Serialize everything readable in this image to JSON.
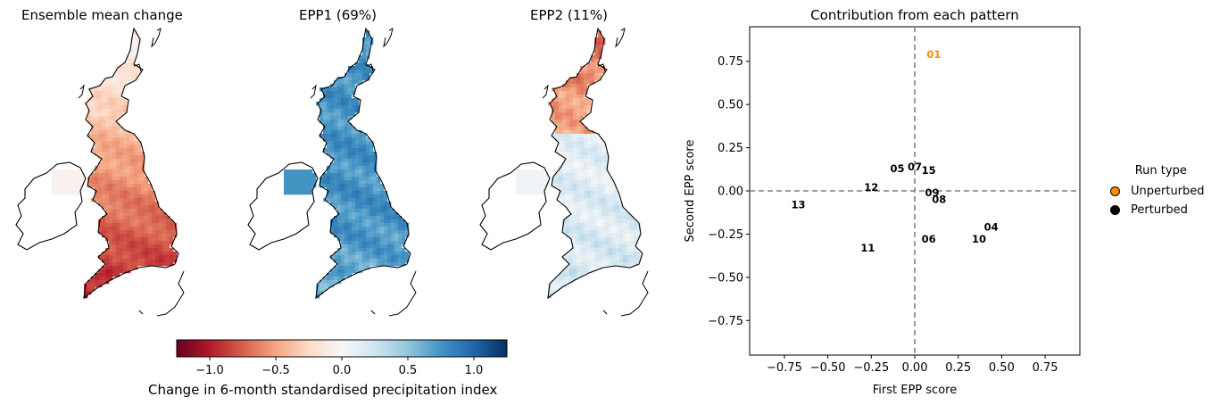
{
  "maps": [
    {
      "title": "Ensemble mean change"
    },
    {
      "title": "EPP1 (69%)"
    },
    {
      "title": "EPP2 (11%)"
    }
  ],
  "colorbar": {
    "label": "Change in 6-month standardised precipitation index",
    "ticks": [
      "−1.0",
      "−0.5",
      "0.0",
      "0.5",
      "1.0"
    ],
    "tick_values": [
      -1.0,
      -0.5,
      0.0,
      0.5,
      1.0
    ],
    "range": [
      -1.25,
      1.25
    ],
    "colormap": "RdBu"
  },
  "chart_data": {
    "type": "scatter",
    "title": "Contribution from each pattern",
    "xlabel": "First EPP score",
    "ylabel": "Second EPP score",
    "xlim": [
      -0.95,
      0.95
    ],
    "ylim": [
      -0.95,
      0.95
    ],
    "xticks": [
      "−0.75",
      "−0.50",
      "−0.25",
      "0.00",
      "0.25",
      "0.50",
      "0.75"
    ],
    "xtick_values": [
      -0.75,
      -0.5,
      -0.25,
      0.0,
      0.25,
      0.5,
      0.75
    ],
    "yticks": [
      "−0.75",
      "−0.50",
      "−0.25",
      "0.00",
      "0.25",
      "0.50",
      "0.75"
    ],
    "ytick_values": [
      -0.75,
      -0.5,
      -0.25,
      0.0,
      0.25,
      0.5,
      0.75
    ],
    "reference_lines": {
      "x": 0,
      "y": 0,
      "style": "dashed",
      "color": "#808080"
    },
    "points": [
      {
        "label": "01",
        "x": 0.11,
        "y": 0.79,
        "type": "Unperturbed"
      },
      {
        "label": "04",
        "x": 0.44,
        "y": -0.21,
        "type": "Perturbed"
      },
      {
        "label": "05",
        "x": -0.1,
        "y": 0.13,
        "type": "Perturbed"
      },
      {
        "label": "06",
        "x": 0.08,
        "y": -0.28,
        "type": "Perturbed"
      },
      {
        "label": "07",
        "x": 0.0,
        "y": 0.14,
        "type": "Perturbed"
      },
      {
        "label": "08",
        "x": 0.14,
        "y": -0.05,
        "type": "Perturbed"
      },
      {
        "label": "09",
        "x": 0.1,
        "y": -0.01,
        "type": "Perturbed"
      },
      {
        "label": "10",
        "x": 0.37,
        "y": -0.28,
        "type": "Perturbed"
      },
      {
        "label": "11",
        "x": -0.27,
        "y": -0.33,
        "type": "Perturbed"
      },
      {
        "label": "12",
        "x": -0.25,
        "y": 0.02,
        "type": "Perturbed"
      },
      {
        "label": "13",
        "x": -0.67,
        "y": -0.08,
        "type": "Perturbed"
      },
      {
        "label": "15",
        "x": 0.08,
        "y": 0.12,
        "type": "Perturbed"
      }
    ],
    "legend": {
      "title": "Run type",
      "placement": "right, outside",
      "entries": [
        {
          "name": "Unperturbed",
          "color": "#ff8c00"
        },
        {
          "name": "Perturbed",
          "color": "#000000"
        }
      ]
    }
  }
}
